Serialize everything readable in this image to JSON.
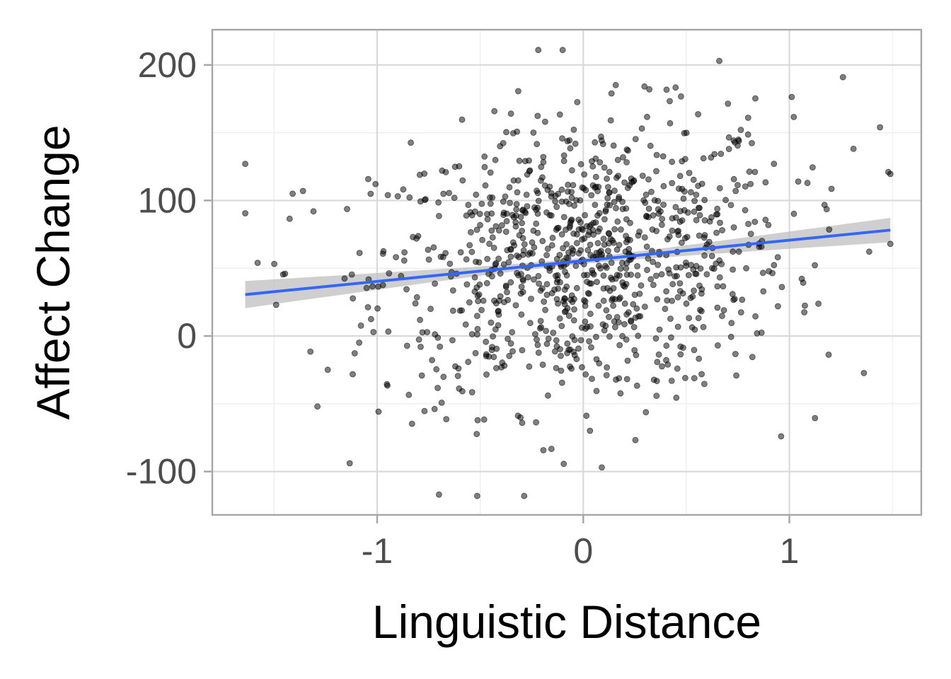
{
  "chart_data": {
    "type": "scatter",
    "title": "",
    "xlabel": "Linguistic Distance",
    "ylabel": "Affect Change",
    "xlim": [
      -1.8,
      1.64
    ],
    "ylim": [
      -132,
      226
    ],
    "x_ticks": [
      -1,
      0,
      1
    ],
    "x_tick_labels": [
      "-1",
      "0",
      "1"
    ],
    "y_ticks": [
      -100,
      0,
      100,
      200
    ],
    "y_tick_labels": [
      "-100",
      "0",
      "100",
      "200"
    ],
    "grid": true,
    "legend": "none",
    "n_points_approx": 1000,
    "point_cloud": {
      "x_mean": 0.0,
      "x_sd": 0.5,
      "y_mean": 57,
      "y_sd": 52,
      "x_range": [
        -1.64,
        1.49
      ],
      "y_range": [
        -118,
        211
      ]
    },
    "notable_points": [
      {
        "x": -1.64,
        "y": 127
      },
      {
        "x": -1.58,
        "y": 54
      },
      {
        "x": -1.49,
        "y": 23
      },
      {
        "x": -1.41,
        "y": 105
      },
      {
        "x": -1.36,
        "y": 107
      },
      {
        "x": -1.29,
        "y": -52
      },
      {
        "x": -0.7,
        "y": -117
      },
      {
        "x": -0.1,
        "y": 211
      },
      {
        "x": 0.09,
        "y": -97
      },
      {
        "x": 0.66,
        "y": 203
      },
      {
        "x": 0.96,
        "y": -74
      },
      {
        "x": 1.26,
        "y": 191
      },
      {
        "x": 1.44,
        "y": 154
      },
      {
        "x": 1.48,
        "y": 121
      },
      {
        "x": 1.49,
        "y": 68
      }
    ],
    "regression": {
      "method": "linear",
      "x_range": [
        -1.64,
        1.49
      ],
      "intercept": 55.5,
      "slope": 15.2,
      "ci_halfwidth_at_ends": [
        10,
        9
      ],
      "ci_halfwidth_at_center": 2.2
    },
    "colors": {
      "points": "#000000",
      "points_opacity": 0.5,
      "line": "#3366FF",
      "ci_band": "#bfbfbf",
      "panel_border": "#a6a6a6",
      "grid_major": "#d9d9d9",
      "grid_minor": "#ececec"
    }
  }
}
